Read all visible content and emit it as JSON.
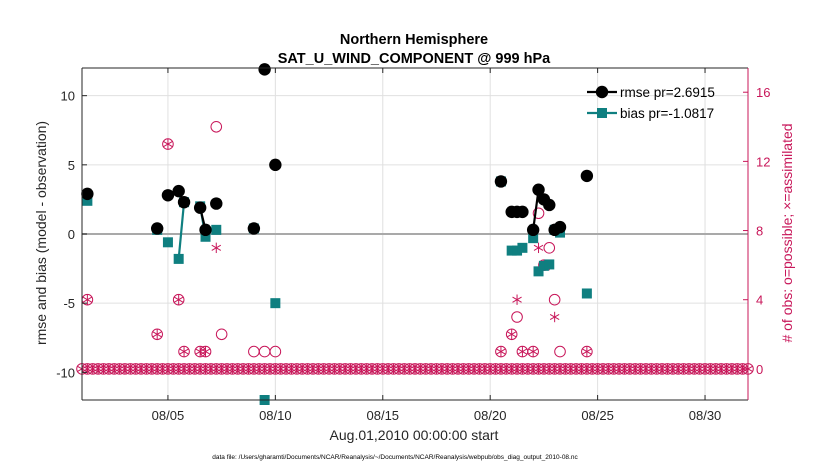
{
  "chart_data": {
    "type": "scatter",
    "title": "Northern Hemisphere",
    "subtitle": "SAT_U_WIND_COMPONENT @ 999 hPa",
    "xlabel": "Aug.01,2010 00:00:00 start",
    "ylabel_left": "rmse and bias (model - observation)",
    "ylabel_right": "# of obs: o=possible; ×=assimilated",
    "footer": "data file: /Users/gharamti/Documents/NCAR/Reanalysis/~/Documents/NCAR/Reanalysis/webpub/obs_diag_output_2010-08.nc",
    "xlim": [
      1,
      32
    ],
    "ylim_left": [
      -12,
      12
    ],
    "ylim_right": [
      -1.8,
      17.4
    ],
    "x_ticks": [
      5,
      10,
      15,
      20,
      25,
      30
    ],
    "x_tick_labels": [
      "08/05",
      "08/10",
      "08/15",
      "08/20",
      "08/25",
      "08/30"
    ],
    "y_ticks_left": [
      -10,
      -5,
      0,
      5,
      10
    ],
    "y_tick_labels_left": [
      "-10",
      "-5",
      "0",
      "5",
      "10"
    ],
    "y_ticks_right": [
      0,
      4,
      8,
      12,
      16
    ],
    "y_tick_labels_right": [
      "0",
      "4",
      "8",
      "12",
      "16"
    ],
    "grid": true,
    "legend_position": "top-right",
    "colors": {
      "rmse": "#000000",
      "bias": "#0f7f80",
      "obs": "#c8175a",
      "zero_line": "#a9a9a9",
      "grid": "#e0e0e0"
    },
    "series": [
      {
        "name": "rmse",
        "legend_label": "rmse pr=2.6915",
        "marker": "circle",
        "x": [
          1.25,
          4.5,
          5.0,
          5.5,
          5.75,
          6.5,
          6.75,
          7.25,
          9.0,
          9.5,
          10.0,
          20.5,
          21.0,
          21.25,
          21.5,
          22.0,
          22.25,
          22.5,
          22.75,
          23.0,
          23.25,
          24.5
        ],
        "y": [
          2.9,
          0.4,
          2.8,
          3.1,
          2.3,
          1.9,
          0.3,
          2.2,
          0.4,
          11.9,
          5.0,
          3.8,
          1.6,
          1.6,
          1.6,
          0.3,
          3.2,
          2.5,
          2.1,
          0.3,
          0.5,
          4.2
        ],
        "line_segments": [
          [
            5.5,
            5.75
          ],
          [
            6.5,
            6.75
          ],
          [
            22.0,
            22.25
          ],
          [
            22.25,
            22.75
          ]
        ]
      },
      {
        "name": "bias",
        "legend_label": "bias pr=-1.0817",
        "marker": "square",
        "x": [
          1.25,
          4.5,
          5.0,
          5.5,
          5.75,
          6.5,
          6.75,
          7.25,
          9.0,
          9.5,
          10.0,
          20.5,
          21.0,
          21.25,
          21.5,
          22.0,
          22.25,
          22.5,
          22.75,
          23.0,
          23.25,
          24.5
        ],
        "y": [
          2.4,
          0.3,
          -0.6,
          -1.8,
          2.3,
          2.0,
          -0.2,
          0.3,
          0.4,
          -12.0,
          -5.0,
          3.8,
          -1.2,
          -1.2,
          -1.0,
          -0.3,
          -2.7,
          -2.3,
          -2.2,
          0.3,
          0.1,
          -4.3
        ],
        "line_segments": [
          [
            5.5,
            5.75
          ],
          [
            6.5,
            6.75
          ],
          [
            22.25,
            22.5
          ]
        ]
      },
      {
        "name": "obs_possible",
        "marker": "open-circle",
        "x": [
          1.25,
          4.5,
          5.0,
          5.5,
          5.75,
          6.5,
          6.75,
          7.25,
          7.5,
          9.0,
          9.5,
          10.0,
          20.5,
          21.0,
          21.25,
          21.5,
          22.0,
          22.25,
          22.5,
          22.75,
          23.0,
          23.25,
          24.5
        ],
        "y": [
          4,
          2,
          13,
          4,
          1,
          1,
          1,
          14,
          2,
          1,
          1,
          1,
          1,
          2,
          3,
          1,
          1,
          9,
          6,
          7,
          4,
          1,
          1
        ]
      },
      {
        "name": "obs_assimilated",
        "marker": "asterisk",
        "x": [
          1.25,
          4.5,
          5.0,
          5.5,
          5.75,
          6.5,
          6.75,
          7.25,
          20.5,
          21.0,
          21.25,
          21.5,
          22.0,
          22.25,
          22.5,
          22.75,
          23.0,
          24.5
        ],
        "y": [
          4,
          2,
          13,
          4,
          1,
          1,
          1,
          7,
          1,
          2,
          4,
          1,
          1,
          7,
          6,
          6,
          3,
          1
        ]
      }
    ],
    "zero_count_range": [
      1,
      32,
      0.25
    ]
  }
}
